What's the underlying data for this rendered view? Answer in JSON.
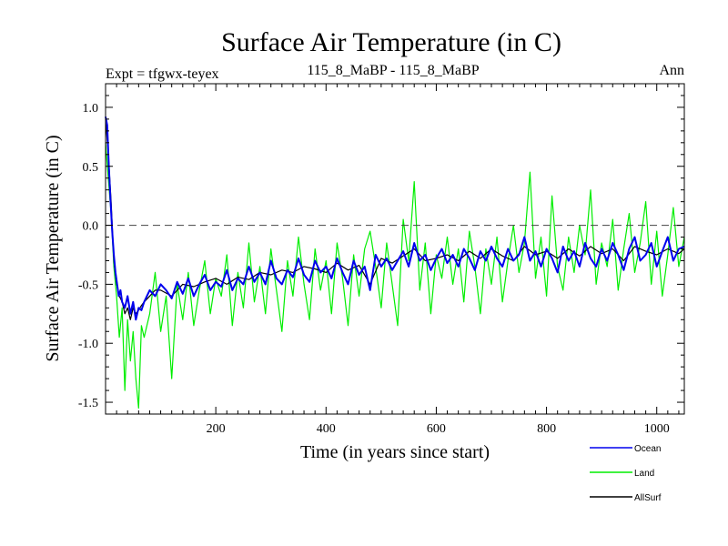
{
  "chart_data": {
    "type": "line",
    "title": "Surface Air Temperature (in C)",
    "subtitle_left": "Expt = tfgwx-teyex",
    "subtitle_center": "115_8_MaBP - 115_8_MaBP",
    "subtitle_right": "Ann",
    "xlabel": "Time (in years since start)",
    "ylabel": "Surface Air Temperature (in C)",
    "xlim": [
      0,
      1050
    ],
    "ylim": [
      -1.6,
      1.2
    ],
    "x_ticks": [
      200,
      400,
      600,
      800,
      1000
    ],
    "x_tick_labels": [
      "200",
      "400",
      "600",
      "800",
      "1000"
    ],
    "y_ticks": [
      1.0,
      0.5,
      0.0,
      -0.5,
      -1.0,
      -1.5
    ],
    "y_tick_labels": [
      "1.0",
      "0.5",
      "0.0",
      "-0.5",
      "-1.0",
      "-1.5"
    ],
    "reference_line": 0.0,
    "legend": [
      "Ocean",
      "Land",
      "AllSurf"
    ],
    "series": [
      {
        "name": "Land",
        "color": "#00ee00",
        "x": [
          0,
          5,
          10,
          15,
          20,
          25,
          30,
          35,
          40,
          45,
          50,
          55,
          60,
          65,
          70,
          80,
          90,
          100,
          110,
          120,
          130,
          140,
          150,
          160,
          170,
          180,
          190,
          200,
          210,
          220,
          230,
          240,
          250,
          260,
          270,
          280,
          290,
          300,
          310,
          320,
          330,
          340,
          350,
          360,
          370,
          380,
          390,
          400,
          410,
          420,
          430,
          440,
          450,
          460,
          470,
          480,
          490,
          500,
          510,
          520,
          530,
          540,
          550,
          560,
          570,
          580,
          590,
          600,
          610,
          620,
          630,
          640,
          650,
          660,
          670,
          680,
          690,
          700,
          710,
          720,
          730,
          740,
          750,
          760,
          770,
          780,
          790,
          800,
          810,
          820,
          830,
          840,
          850,
          860,
          870,
          880,
          890,
          900,
          910,
          920,
          930,
          940,
          950,
          960,
          970,
          980,
          990,
          1000,
          1010,
          1020,
          1030,
          1040,
          1050
        ],
        "values": [
          0.7,
          0.4,
          0.1,
          -0.35,
          -0.6,
          -0.95,
          -0.7,
          -1.4,
          -0.8,
          -1.15,
          -0.9,
          -1.3,
          -1.55,
          -0.85,
          -0.95,
          -0.75,
          -0.4,
          -0.9,
          -0.6,
          -1.3,
          -0.5,
          -0.8,
          -0.4,
          -0.85,
          -0.55,
          -0.3,
          -0.75,
          -0.45,
          -0.6,
          -0.25,
          -0.85,
          -0.4,
          -0.7,
          -0.15,
          -0.65,
          -0.35,
          -0.75,
          -0.2,
          -0.55,
          -0.9,
          -0.3,
          -0.6,
          -0.1,
          -0.5,
          -0.8,
          -0.2,
          -0.55,
          -0.3,
          -0.75,
          -0.15,
          -0.45,
          -0.85,
          -0.25,
          -0.6,
          -0.2,
          -0.05,
          -0.35,
          -0.7,
          -0.15,
          -0.5,
          -0.85,
          0.05,
          -0.3,
          0.37,
          -0.55,
          -0.15,
          -0.75,
          -0.25,
          -0.45,
          -0.1,
          -0.5,
          -0.2,
          -0.65,
          -0.05,
          -0.35,
          -0.75,
          -0.2,
          -0.5,
          -0.1,
          -0.65,
          -0.3,
          0.0,
          -0.4,
          -0.15,
          0.45,
          -0.45,
          -0.1,
          -0.6,
          0.25,
          -0.35,
          -0.55,
          -0.1,
          -0.4,
          0.0,
          -0.25,
          0.3,
          -0.5,
          -0.15,
          -0.35,
          0.05,
          -0.55,
          -0.2,
          0.1,
          -0.4,
          -0.15,
          0.2,
          -0.5,
          -0.05,
          -0.6,
          -0.25,
          0.15,
          -0.35,
          -0.1
        ]
      },
      {
        "name": "AllSurf",
        "color": "#000000",
        "x": [
          0,
          5,
          10,
          15,
          20,
          25,
          30,
          35,
          40,
          45,
          50,
          55,
          60,
          65,
          70,
          80,
          90,
          100,
          120,
          140,
          160,
          180,
          200,
          220,
          240,
          260,
          280,
          300,
          320,
          340,
          360,
          380,
          400,
          420,
          440,
          460,
          480,
          500,
          520,
          540,
          560,
          580,
          600,
          620,
          640,
          660,
          680,
          700,
          720,
          740,
          760,
          780,
          800,
          820,
          840,
          860,
          880,
          900,
          920,
          940,
          960,
          980,
          1000,
          1020,
          1040,
          1050
        ],
        "values": [
          0.9,
          0.6,
          0.2,
          -0.3,
          -0.5,
          -0.6,
          -0.65,
          -0.75,
          -0.7,
          -0.8,
          -0.7,
          -0.75,
          -0.72,
          -0.68,
          -0.65,
          -0.6,
          -0.55,
          -0.55,
          -0.6,
          -0.5,
          -0.52,
          -0.48,
          -0.45,
          -0.5,
          -0.44,
          -0.46,
          -0.4,
          -0.42,
          -0.38,
          -0.4,
          -0.35,
          -0.37,
          -0.4,
          -0.32,
          -0.38,
          -0.34,
          -0.5,
          -0.28,
          -0.32,
          -0.26,
          -0.2,
          -0.3,
          -0.28,
          -0.25,
          -0.3,
          -0.22,
          -0.28,
          -0.2,
          -0.26,
          -0.3,
          -0.18,
          -0.25,
          -0.22,
          -0.28,
          -0.2,
          -0.26,
          -0.18,
          -0.24,
          -0.2,
          -0.3,
          -0.18,
          -0.22,
          -0.25,
          -0.2,
          -0.24,
          -0.2
        ]
      },
      {
        "name": "Ocean",
        "color": "#0000ee",
        "x": [
          0,
          3,
          6,
          9,
          12,
          15,
          18,
          21,
          24,
          27,
          30,
          35,
          40,
          45,
          50,
          55,
          60,
          65,
          70,
          75,
          80,
          90,
          100,
          110,
          120,
          130,
          140,
          150,
          160,
          170,
          180,
          190,
          200,
          210,
          220,
          230,
          240,
          250,
          260,
          270,
          280,
          290,
          300,
          310,
          320,
          330,
          340,
          350,
          360,
          370,
          380,
          390,
          400,
          410,
          420,
          430,
          440,
          450,
          460,
          470,
          480,
          490,
          500,
          510,
          520,
          530,
          540,
          550,
          560,
          570,
          580,
          590,
          600,
          610,
          620,
          630,
          640,
          650,
          660,
          670,
          680,
          690,
          700,
          710,
          720,
          730,
          740,
          750,
          760,
          770,
          780,
          790,
          800,
          810,
          820,
          830,
          840,
          850,
          860,
          870,
          880,
          890,
          900,
          910,
          920,
          930,
          940,
          950,
          960,
          970,
          980,
          990,
          1000,
          1010,
          1020,
          1030,
          1040,
          1050
        ],
        "values": [
          0.92,
          0.85,
          0.5,
          0.2,
          -0.05,
          -0.25,
          -0.4,
          -0.5,
          -0.6,
          -0.55,
          -0.65,
          -0.7,
          -0.6,
          -0.75,
          -0.65,
          -0.8,
          -0.7,
          -0.72,
          -0.65,
          -0.6,
          -0.55,
          -0.6,
          -0.5,
          -0.55,
          -0.62,
          -0.48,
          -0.58,
          -0.45,
          -0.6,
          -0.5,
          -0.42,
          -0.55,
          -0.48,
          -0.52,
          -0.38,
          -0.55,
          -0.45,
          -0.5,
          -0.35,
          -0.48,
          -0.4,
          -0.5,
          -0.3,
          -0.45,
          -0.5,
          -0.38,
          -0.44,
          -0.28,
          -0.42,
          -0.48,
          -0.3,
          -0.4,
          -0.35,
          -0.45,
          -0.28,
          -0.4,
          -0.5,
          -0.3,
          -0.42,
          -0.35,
          -0.55,
          -0.25,
          -0.35,
          -0.28,
          -0.38,
          -0.3,
          -0.22,
          -0.35,
          -0.15,
          -0.3,
          -0.25,
          -0.38,
          -0.28,
          -0.2,
          -0.32,
          -0.25,
          -0.35,
          -0.2,
          -0.28,
          -0.38,
          -0.22,
          -0.3,
          -0.18,
          -0.28,
          -0.35,
          -0.2,
          -0.3,
          -0.25,
          -0.1,
          -0.3,
          -0.22,
          -0.35,
          -0.2,
          -0.28,
          -0.4,
          -0.18,
          -0.3,
          -0.22,
          -0.35,
          -0.15,
          -0.28,
          -0.35,
          -0.2,
          -0.3,
          -0.15,
          -0.25,
          -0.38,
          -0.2,
          -0.1,
          -0.3,
          -0.25,
          -0.15,
          -0.35,
          -0.22,
          -0.1,
          -0.3,
          -0.2,
          -0.18
        ]
      }
    ]
  }
}
